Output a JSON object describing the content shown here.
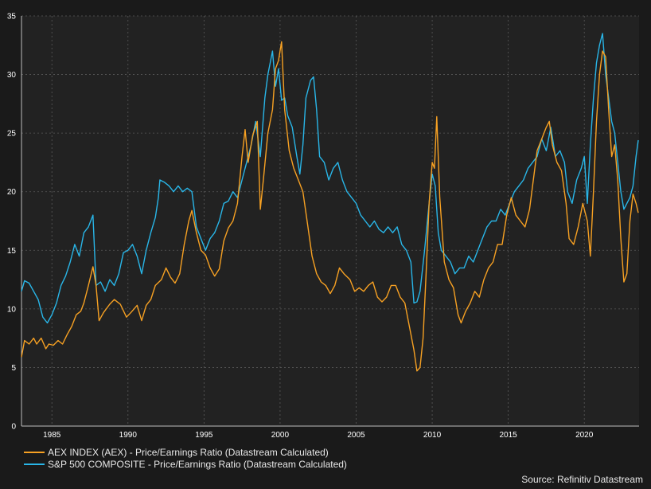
{
  "chart_data": {
    "type": "line",
    "title": "",
    "xlabel": "",
    "ylabel": "",
    "xlim": [
      1983.0,
      2023.6
    ],
    "ylim": [
      0,
      35
    ],
    "x_ticks": [
      1985,
      1990,
      1995,
      2000,
      2005,
      2010,
      2015,
      2020
    ],
    "x_tick_labels": [
      "1985",
      "1990",
      "1995",
      "2000",
      "2005",
      "2010",
      "2015",
      "2020"
    ],
    "y_ticks": [
      0,
      5,
      10,
      15,
      20,
      25,
      30,
      35
    ],
    "y_tick_labels": [
      "0",
      "5",
      "10",
      "15",
      "20",
      "25",
      "30",
      "35"
    ],
    "grid": "dashed",
    "legend_position": "bottom-left",
    "series": [
      {
        "name": "AEX INDEX (AEX) - Price/Earnings Ratio (Datastream Calculated)",
        "color": "#f7a123",
        "points": [
          [
            1983.0,
            5.9
          ],
          [
            1983.2,
            7.3
          ],
          [
            1983.5,
            7.0
          ],
          [
            1983.8,
            7.5
          ],
          [
            1984.0,
            7.0
          ],
          [
            1984.3,
            7.5
          ],
          [
            1984.6,
            6.6
          ],
          [
            1984.8,
            7.0
          ],
          [
            1985.1,
            6.9
          ],
          [
            1985.4,
            7.3
          ],
          [
            1985.7,
            7.0
          ],
          [
            1986.0,
            7.8
          ],
          [
            1986.3,
            8.5
          ],
          [
            1986.6,
            9.5
          ],
          [
            1986.9,
            9.8
          ],
          [
            1987.1,
            10.5
          ],
          [
            1987.4,
            12.0
          ],
          [
            1987.7,
            13.6
          ],
          [
            1987.9,
            12.0
          ],
          [
            1988.1,
            9.0
          ],
          [
            1988.4,
            9.7
          ],
          [
            1988.8,
            10.4
          ],
          [
            1989.1,
            10.8
          ],
          [
            1989.5,
            10.4
          ],
          [
            1989.9,
            9.3
          ],
          [
            1990.2,
            9.7
          ],
          [
            1990.6,
            10.3
          ],
          [
            1990.9,
            9.0
          ],
          [
            1991.2,
            10.3
          ],
          [
            1991.5,
            10.8
          ],
          [
            1991.8,
            12.0
          ],
          [
            1992.2,
            12.5
          ],
          [
            1992.5,
            13.5
          ],
          [
            1992.8,
            12.7
          ],
          [
            1993.1,
            12.2
          ],
          [
            1993.4,
            13.0
          ],
          [
            1993.7,
            15.5
          ],
          [
            1994.0,
            17.5
          ],
          [
            1994.2,
            18.4
          ],
          [
            1994.5,
            16.5
          ],
          [
            1994.8,
            15.0
          ],
          [
            1995.1,
            14.6
          ],
          [
            1995.4,
            13.5
          ],
          [
            1995.7,
            12.8
          ],
          [
            1996.0,
            13.4
          ],
          [
            1996.3,
            15.8
          ],
          [
            1996.6,
            16.9
          ],
          [
            1996.9,
            17.5
          ],
          [
            1997.2,
            19.0
          ],
          [
            1997.5,
            23.0
          ],
          [
            1997.7,
            25.3
          ],
          [
            1997.9,
            22.5
          ],
          [
            1998.2,
            24.8
          ],
          [
            1998.5,
            26.0
          ],
          [
            1998.7,
            18.5
          ],
          [
            1998.9,
            21.0
          ],
          [
            1999.2,
            25.0
          ],
          [
            1999.5,
            27.0
          ],
          [
            1999.7,
            30.5
          ],
          [
            1999.9,
            31.2
          ],
          [
            2000.1,
            32.8
          ],
          [
            2000.3,
            27.0
          ],
          [
            2000.6,
            23.5
          ],
          [
            2000.9,
            22.0
          ],
          [
            2001.2,
            21.0
          ],
          [
            2001.5,
            20.0
          ],
          [
            2001.8,
            17.3
          ],
          [
            2002.1,
            14.5
          ],
          [
            2002.4,
            13.0
          ],
          [
            2002.7,
            12.3
          ],
          [
            2003.0,
            12.0
          ],
          [
            2003.3,
            11.3
          ],
          [
            2003.6,
            12.0
          ],
          [
            2003.9,
            13.5
          ],
          [
            2004.2,
            13.0
          ],
          [
            2004.6,
            12.5
          ],
          [
            2004.9,
            11.5
          ],
          [
            2005.2,
            11.8
          ],
          [
            2005.5,
            11.5
          ],
          [
            2005.8,
            12.0
          ],
          [
            2006.1,
            12.3
          ],
          [
            2006.4,
            11.0
          ],
          [
            2006.7,
            10.6
          ],
          [
            2007.0,
            11.0
          ],
          [
            2007.3,
            12.0
          ],
          [
            2007.6,
            12.0
          ],
          [
            2007.9,
            11.0
          ],
          [
            2008.2,
            10.5
          ],
          [
            2008.5,
            8.5
          ],
          [
            2008.8,
            6.5
          ],
          [
            2009.0,
            4.7
          ],
          [
            2009.2,
            5.0
          ],
          [
            2009.4,
            7.5
          ],
          [
            2009.6,
            13.0
          ],
          [
            2009.8,
            19.0
          ],
          [
            2010.0,
            22.5
          ],
          [
            2010.15,
            22.0
          ],
          [
            2010.3,
            26.4
          ],
          [
            2010.5,
            19.5
          ],
          [
            2010.8,
            14.0
          ],
          [
            2011.1,
            12.5
          ],
          [
            2011.4,
            11.8
          ],
          [
            2011.7,
            9.5
          ],
          [
            2011.9,
            8.8
          ],
          [
            2012.2,
            9.8
          ],
          [
            2012.5,
            10.5
          ],
          [
            2012.8,
            11.5
          ],
          [
            2013.1,
            11.0
          ],
          [
            2013.4,
            12.5
          ],
          [
            2013.7,
            13.5
          ],
          [
            2014.0,
            14.0
          ],
          [
            2014.3,
            15.5
          ],
          [
            2014.6,
            15.5
          ],
          [
            2014.9,
            18.0
          ],
          [
            2015.2,
            19.5
          ],
          [
            2015.5,
            18.0
          ],
          [
            2015.8,
            17.5
          ],
          [
            2016.1,
            17.0
          ],
          [
            2016.4,
            18.5
          ],
          [
            2016.7,
            21.5
          ],
          [
            2016.9,
            23.5
          ],
          [
            2017.2,
            24.5
          ],
          [
            2017.5,
            25.5
          ],
          [
            2017.7,
            26.0
          ],
          [
            2017.9,
            24.0
          ],
          [
            2018.2,
            22.5
          ],
          [
            2018.5,
            21.8
          ],
          [
            2018.8,
            19.0
          ],
          [
            2019.0,
            16.0
          ],
          [
            2019.3,
            15.5
          ],
          [
            2019.6,
            17.0
          ],
          [
            2019.9,
            19.0
          ],
          [
            2020.2,
            17.5
          ],
          [
            2020.4,
            14.5
          ],
          [
            2020.6,
            20.0
          ],
          [
            2020.8,
            26.0
          ],
          [
            2021.0,
            30.0
          ],
          [
            2021.2,
            32.0
          ],
          [
            2021.4,
            31.5
          ],
          [
            2021.6,
            27.0
          ],
          [
            2021.8,
            23.0
          ],
          [
            2022.0,
            24.0
          ],
          [
            2022.2,
            21.0
          ],
          [
            2022.4,
            16.0
          ],
          [
            2022.6,
            12.3
          ],
          [
            2022.8,
            13.0
          ],
          [
            2023.0,
            17.5
          ],
          [
            2023.2,
            19.8
          ],
          [
            2023.4,
            19.0
          ],
          [
            2023.55,
            18.2
          ]
        ]
      },
      {
        "name": "S&P 500 COMPOSITE - Price/Earnings Ratio (Datastream Calculated)",
        "color": "#29b6e8",
        "points": [
          [
            1983.0,
            11.5
          ],
          [
            1983.2,
            12.4
          ],
          [
            1983.5,
            12.2
          ],
          [
            1983.8,
            11.5
          ],
          [
            1984.1,
            10.8
          ],
          [
            1984.4,
            9.3
          ],
          [
            1984.7,
            8.8
          ],
          [
            1985.0,
            9.5
          ],
          [
            1985.3,
            10.5
          ],
          [
            1985.6,
            12.0
          ],
          [
            1985.9,
            12.8
          ],
          [
            1986.2,
            14.0
          ],
          [
            1986.5,
            15.5
          ],
          [
            1986.8,
            14.5
          ],
          [
            1987.1,
            16.5
          ],
          [
            1987.4,
            17.0
          ],
          [
            1987.7,
            18.0
          ],
          [
            1987.9,
            12.0
          ],
          [
            1988.2,
            12.3
          ],
          [
            1988.5,
            11.5
          ],
          [
            1988.8,
            12.5
          ],
          [
            1989.1,
            12.0
          ],
          [
            1989.4,
            13.0
          ],
          [
            1989.7,
            14.8
          ],
          [
            1990.0,
            15.0
          ],
          [
            1990.3,
            15.5
          ],
          [
            1990.6,
            14.5
          ],
          [
            1990.9,
            13.0
          ],
          [
            1991.2,
            15.0
          ],
          [
            1991.5,
            16.5
          ],
          [
            1991.8,
            17.8
          ],
          [
            1992.0,
            19.5
          ],
          [
            1992.1,
            21.0
          ],
          [
            1992.4,
            20.8
          ],
          [
            1992.7,
            20.5
          ],
          [
            1993.0,
            20.0
          ],
          [
            1993.3,
            20.5
          ],
          [
            1993.6,
            20.0
          ],
          [
            1993.9,
            20.3
          ],
          [
            1994.2,
            20.0
          ],
          [
            1994.5,
            17.0
          ],
          [
            1994.8,
            16.0
          ],
          [
            1995.1,
            15.0
          ],
          [
            1995.4,
            16.0
          ],
          [
            1995.7,
            16.5
          ],
          [
            1996.0,
            17.5
          ],
          [
            1996.3,
            19.0
          ],
          [
            1996.6,
            19.2
          ],
          [
            1996.9,
            20.0
          ],
          [
            1997.2,
            19.5
          ],
          [
            1997.5,
            21.0
          ],
          [
            1997.8,
            22.5
          ],
          [
            1998.1,
            24.0
          ],
          [
            1998.4,
            26.0
          ],
          [
            1998.7,
            23.0
          ],
          [
            1999.0,
            28.0
          ],
          [
            1999.2,
            30.0
          ],
          [
            1999.5,
            32.0
          ],
          [
            1999.7,
            29.0
          ],
          [
            1999.9,
            30.5
          ],
          [
            2000.1,
            27.8
          ],
          [
            2000.3,
            28.0
          ],
          [
            2000.5,
            26.5
          ],
          [
            2000.8,
            25.5
          ],
          [
            2001.1,
            23.0
          ],
          [
            2001.3,
            21.5
          ],
          [
            2001.5,
            24.0
          ],
          [
            2001.7,
            28.0
          ],
          [
            2002.0,
            29.5
          ],
          [
            2002.2,
            29.8
          ],
          [
            2002.4,
            27.0
          ],
          [
            2002.6,
            23.0
          ],
          [
            2002.9,
            22.5
          ],
          [
            2003.2,
            21.0
          ],
          [
            2003.5,
            22.0
          ],
          [
            2003.8,
            22.5
          ],
          [
            2004.1,
            21.0
          ],
          [
            2004.4,
            20.0
          ],
          [
            2004.7,
            19.5
          ],
          [
            2005.0,
            19.0
          ],
          [
            2005.3,
            18.0
          ],
          [
            2005.6,
            17.5
          ],
          [
            2005.9,
            17.0
          ],
          [
            2006.2,
            17.5
          ],
          [
            2006.5,
            16.8
          ],
          [
            2006.8,
            16.5
          ],
          [
            2007.1,
            17.0
          ],
          [
            2007.4,
            16.5
          ],
          [
            2007.7,
            17.0
          ],
          [
            2008.0,
            15.5
          ],
          [
            2008.3,
            15.0
          ],
          [
            2008.6,
            14.0
          ],
          [
            2008.8,
            10.5
          ],
          [
            2009.0,
            10.6
          ],
          [
            2009.2,
            11.5
          ],
          [
            2009.5,
            15.0
          ],
          [
            2009.8,
            19.0
          ],
          [
            2010.0,
            21.5
          ],
          [
            2010.2,
            20.5
          ],
          [
            2010.4,
            16.5
          ],
          [
            2010.6,
            15.0
          ],
          [
            2010.9,
            14.5
          ],
          [
            2011.2,
            14.0
          ],
          [
            2011.5,
            13.0
          ],
          [
            2011.8,
            13.5
          ],
          [
            2012.1,
            13.5
          ],
          [
            2012.4,
            14.5
          ],
          [
            2012.7,
            14.0
          ],
          [
            2013.0,
            15.0
          ],
          [
            2013.3,
            16.0
          ],
          [
            2013.6,
            17.0
          ],
          [
            2013.9,
            17.5
          ],
          [
            2014.2,
            17.5
          ],
          [
            2014.5,
            18.5
          ],
          [
            2014.8,
            18.0
          ],
          [
            2015.1,
            19.0
          ],
          [
            2015.4,
            20.0
          ],
          [
            2015.7,
            20.5
          ],
          [
            2016.0,
            21.0
          ],
          [
            2016.3,
            22.0
          ],
          [
            2016.6,
            22.5
          ],
          [
            2016.9,
            23.0
          ],
          [
            2017.2,
            24.5
          ],
          [
            2017.5,
            23.5
          ],
          [
            2017.8,
            25.5
          ],
          [
            2018.1,
            23.0
          ],
          [
            2018.4,
            23.5
          ],
          [
            2018.7,
            22.5
          ],
          [
            2018.9,
            20.0
          ],
          [
            2019.2,
            19.0
          ],
          [
            2019.5,
            21.0
          ],
          [
            2019.8,
            22.0
          ],
          [
            2020.0,
            23.0
          ],
          [
            2020.2,
            19.0
          ],
          [
            2020.4,
            24.0
          ],
          [
            2020.6,
            28.0
          ],
          [
            2020.8,
            31.0
          ],
          [
            2021.0,
            32.5
          ],
          [
            2021.2,
            33.5
          ],
          [
            2021.4,
            30.0
          ],
          [
            2021.6,
            28.0
          ],
          [
            2021.8,
            26.0
          ],
          [
            2022.0,
            25.0
          ],
          [
            2022.2,
            22.5
          ],
          [
            2022.4,
            20.0
          ],
          [
            2022.6,
            18.5
          ],
          [
            2022.8,
            19.0
          ],
          [
            2023.0,
            19.5
          ],
          [
            2023.2,
            20.5
          ],
          [
            2023.4,
            23.0
          ],
          [
            2023.55,
            24.4
          ]
        ]
      }
    ],
    "source": "Source: Refinitiv Datastream"
  }
}
